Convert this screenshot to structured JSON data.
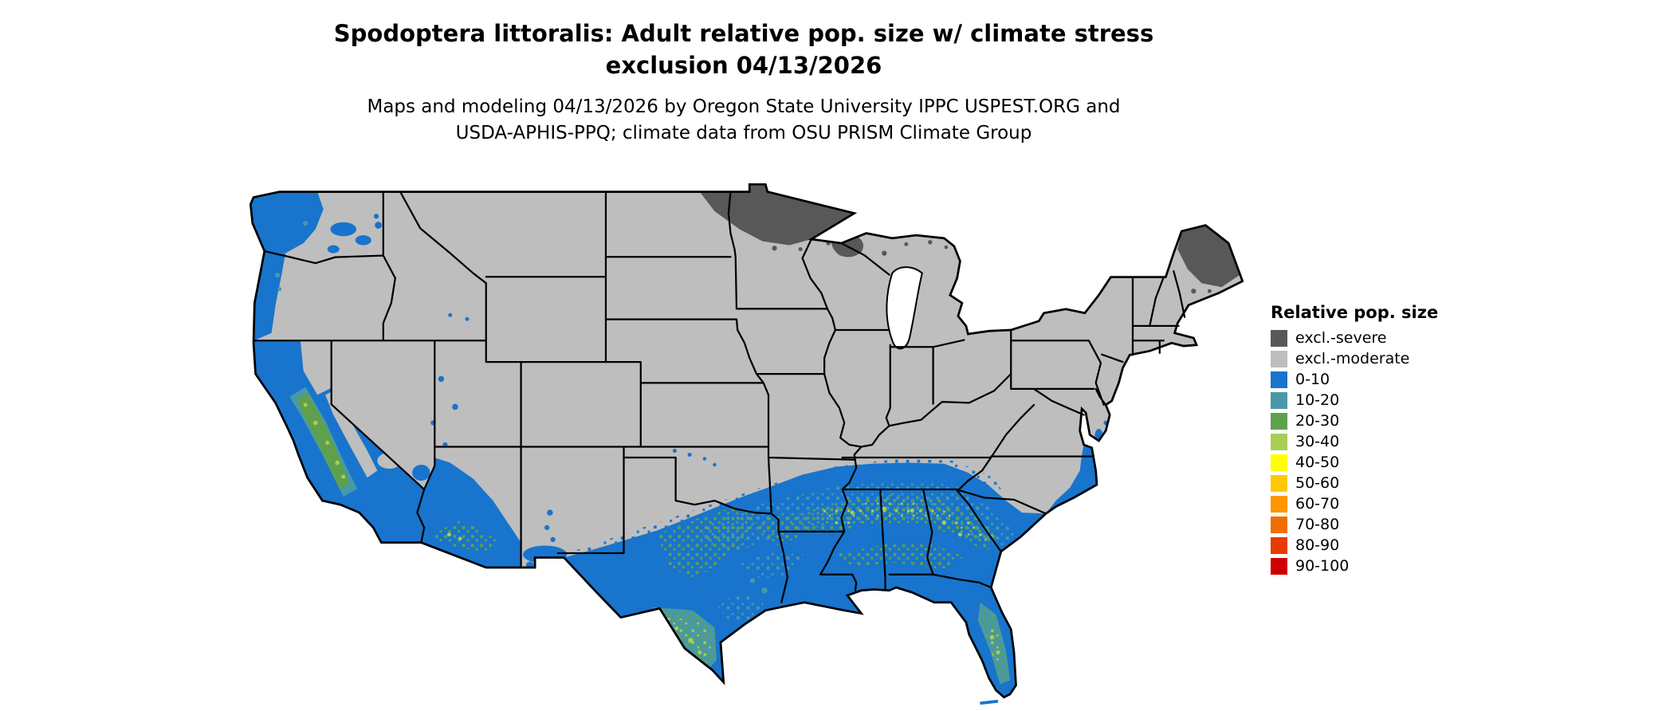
{
  "title": {
    "line1": "Spodoptera littoralis: Adult relative pop. size w/ climate stress",
    "line2": "exclusion 04/13/2026"
  },
  "subtitle": {
    "line1": "Maps and modeling 04/13/2026 by Oregon State University IPPC USPEST.ORG and",
    "line2": "USDA-APHIS-PPQ; climate data from OSU PRISM Climate Group"
  },
  "legend": {
    "title": "Relative pop. size",
    "items": [
      {
        "label": "excl.-severe",
        "color": "#585858"
      },
      {
        "label": "excl.-moderate",
        "color": "#BEBEBE"
      },
      {
        "label": "0-10",
        "color": "#1874CD"
      },
      {
        "label": "10-20",
        "color": "#4799A8"
      },
      {
        "label": "20-30",
        "color": "#5FA04E"
      },
      {
        "label": "30-40",
        "color": "#A9CE54"
      },
      {
        "label": "40-50",
        "color": "#FFFF00"
      },
      {
        "label": "50-60",
        "color": "#FFC800"
      },
      {
        "label": "60-70",
        "color": "#FF9600"
      },
      {
        "label": "70-80",
        "color": "#F06E00"
      },
      {
        "label": "80-90",
        "color": "#E63C00"
      },
      {
        "label": "90-100",
        "color": "#CD0000"
      }
    ]
  },
  "map": {
    "outline_color": "#000000",
    "background": "#ffffff"
  }
}
